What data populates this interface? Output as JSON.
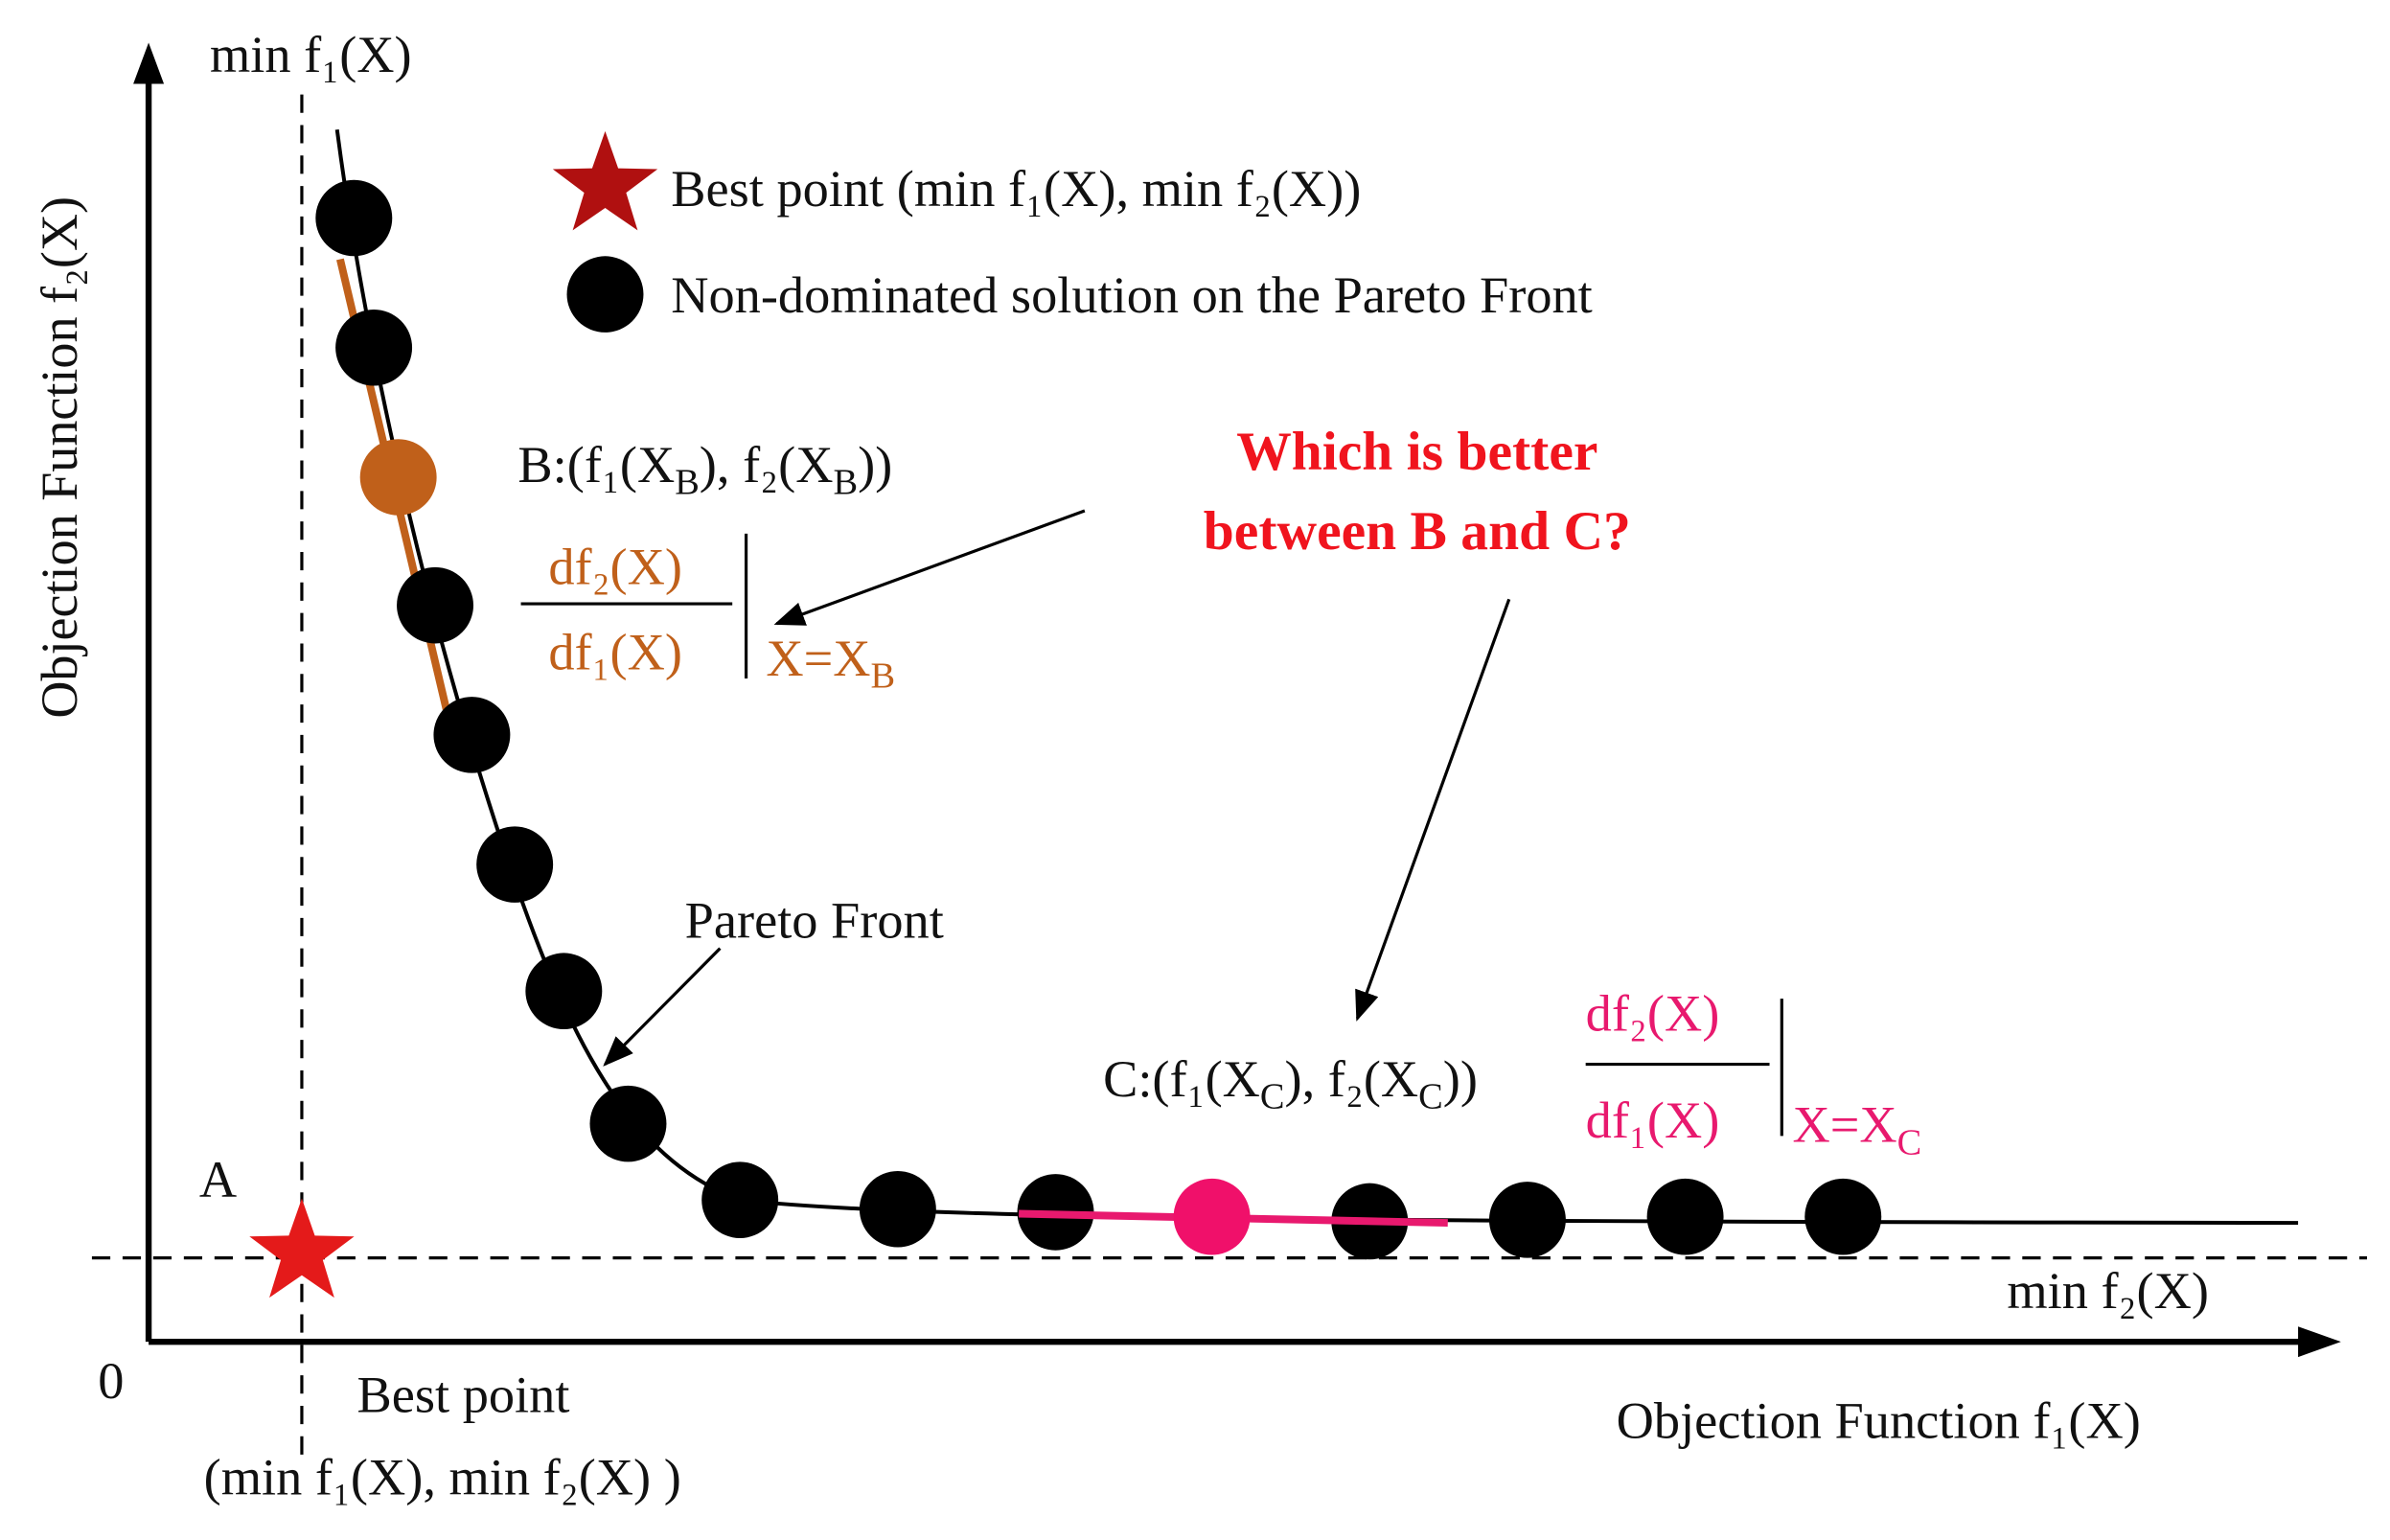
{
  "axes": {
    "y_label": "Objection Function f₂(X)",
    "x_label": "Objection Function f₁(X)",
    "origin": "0",
    "y_top": "min f₁(X)",
    "x_right": "min f₂(X)"
  },
  "legend": {
    "star": "Best point (min f₁(X), min f₂(X))",
    "circle": "Non-dominated solution on the Pareto Front"
  },
  "point_a": "A",
  "best_point": {
    "title": "Best point",
    "coords": "(min f₁(X), min f₂(X) )"
  },
  "pareto_front": "Pareto Front",
  "question": [
    "Which is better",
    "between B and C?"
  ],
  "point_b": {
    "label": [
      "B:(f₁(X",
      "B",
      "), f₂(X",
      "B",
      "))"
    ],
    "numerator": "df₂(X)",
    "denominator": "df₁(X)",
    "at": [
      "X=X",
      "B"
    ]
  },
  "point_c": {
    "label": [
      "C:(f₁(X",
      "C",
      "), f₂(X",
      "C",
      "))"
    ],
    "numerator": "df₂(X)",
    "denominator": "df₁(X)",
    "at": [
      "X=X",
      "C"
    ]
  }
}
